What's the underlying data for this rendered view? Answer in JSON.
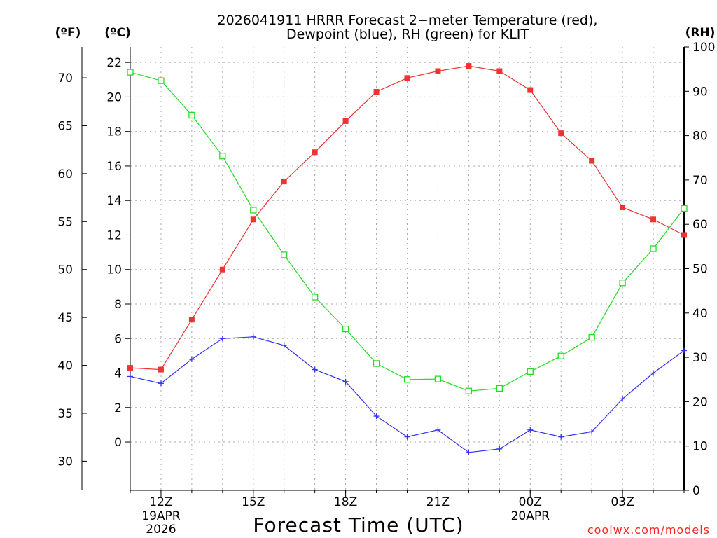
{
  "chart_data": {
    "type": "line",
    "title_line1": "2026041911 HRRR Forecast 2−meter Temperature (red),",
    "title_line2": "Dewpoint (blue), RH (green) for KLIT",
    "xlabel": "Forecast Time (UTC)",
    "credit": "coolwx.com/models",
    "units": {
      "fahrenheit": "(ºF)",
      "celsius": "(ºC)",
      "rh": "(RH)"
    },
    "x_hours": [
      11,
      12,
      13,
      14,
      15,
      16,
      17,
      18,
      19,
      20,
      21,
      22,
      23,
      24,
      25,
      26,
      27,
      28,
      29
    ],
    "x_ticks": [
      {
        "hour": 12,
        "label": "12Z",
        "sub1": "19APR",
        "sub2": "2026"
      },
      {
        "hour": 15,
        "label": "15Z",
        "sub1": "",
        "sub2": ""
      },
      {
        "hour": 18,
        "label": "18Z",
        "sub1": "",
        "sub2": ""
      },
      {
        "hour": 21,
        "label": "21Z",
        "sub1": "",
        "sub2": ""
      },
      {
        "hour": 24,
        "label": "00Z",
        "sub1": "20APR",
        "sub2": ""
      },
      {
        "hour": 27,
        "label": "03Z",
        "sub1": "",
        "sub2": ""
      }
    ],
    "xlim": [
      11,
      29
    ],
    "celsius_axis": {
      "ylim": [
        -2.8,
        22.9
      ],
      "ticks": [
        0,
        2,
        4,
        6,
        8,
        10,
        12,
        14,
        16,
        18,
        20,
        22
      ],
      "tick_labels": [
        "0",
        "2",
        "4",
        "6",
        "8",
        "10",
        "12",
        "14",
        "16",
        "18",
        "20",
        "22"
      ]
    },
    "fahrenheit_axis": {
      "ticks": [
        30,
        35,
        40,
        45,
        50,
        55,
        60,
        65,
        70
      ],
      "tick_labels": [
        "30",
        "35",
        "40",
        "45",
        "50",
        "55",
        "60",
        "65",
        "70"
      ]
    },
    "rh_axis": {
      "ylim": [
        0,
        100
      ],
      "ticks": [
        0,
        10,
        20,
        30,
        40,
        50,
        60,
        70,
        80,
        90,
        100
      ],
      "tick_labels": [
        "0",
        "10",
        "20",
        "30",
        "40",
        "50",
        "60",
        "70",
        "80",
        "90",
        "100"
      ]
    },
    "series": [
      {
        "name": "Temperature",
        "axis": "celsius",
        "color": "#ee3333",
        "marker": "filled-square",
        "values": [
          4.3,
          4.2,
          7.1,
          10.0,
          12.9,
          15.1,
          16.8,
          18.6,
          20.3,
          21.1,
          21.5,
          21.8,
          21.5,
          20.4,
          17.9,
          16.3,
          13.6,
          12.9,
          12.0
        ]
      },
      {
        "name": "Dewpoint",
        "axis": "celsius",
        "color": "#3333ee",
        "marker": "plus",
        "values": [
          3.8,
          3.4,
          4.8,
          6.0,
          6.1,
          5.6,
          4.2,
          3.5,
          1.5,
          0.3,
          0.7,
          -0.6,
          -0.4,
          0.7,
          0.3,
          0.6,
          2.5,
          4.0,
          5.3
        ]
      },
      {
        "name": "RH",
        "axis": "rh",
        "color": "#22dd22",
        "marker": "open-square",
        "values": [
          94.3,
          92.4,
          84.6,
          75.4,
          63.2,
          53.1,
          43.6,
          36.4,
          28.6,
          25.0,
          25.1,
          22.4,
          23.0,
          26.8,
          30.3,
          34.5,
          46.8,
          54.5,
          63.6
        ]
      }
    ]
  }
}
